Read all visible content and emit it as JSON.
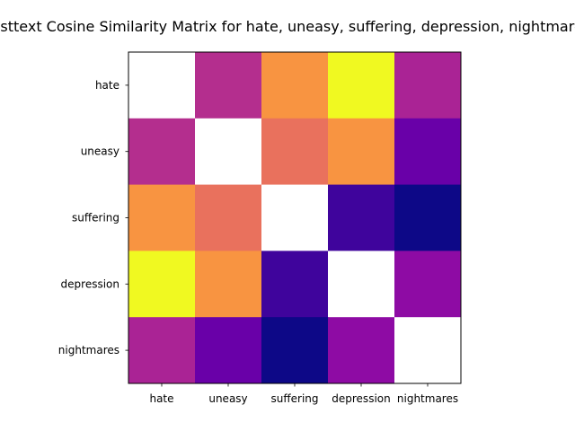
{
  "chart_data": {
    "type": "heatmap",
    "title": "Fasttext Cosine Similarity Matrix for hate, uneasy, suffering, depression, nightmares",
    "rows": [
      "hate",
      "uneasy",
      "suffering",
      "depression",
      "nightmares"
    ],
    "cols": [
      "hate",
      "uneasy",
      "suffering",
      "depression",
      "nightmares"
    ],
    "colormap": "plasma",
    "diagonal_masked": true,
    "grid": false,
    "values": [
      [
        null,
        0.55,
        0.72,
        0.92,
        0.53
      ],
      [
        0.55,
        null,
        0.67,
        0.72,
        0.34
      ],
      [
        0.72,
        0.67,
        null,
        0.24,
        0.12
      ],
      [
        0.92,
        0.72,
        0.24,
        null,
        0.46
      ],
      [
        0.53,
        0.34,
        0.12,
        0.46,
        null
      ]
    ],
    "cell_colors": [
      [
        null,
        "#b42e8e",
        "#f89441",
        "#f0f921",
        "#aa2395"
      ],
      [
        "#b42e8e",
        null,
        "#e9715d",
        "#f89441",
        "#6900a8"
      ],
      [
        "#f89441",
        "#e9715d",
        null,
        "#3f049c",
        "#0d0887"
      ],
      [
        "#f0f921",
        "#f89441",
        "#3f049c",
        null,
        "#8e0ba4"
      ],
      [
        "#aa2395",
        "#6900a8",
        "#0d0887",
        "#8e0ba4",
        null
      ]
    ]
  }
}
